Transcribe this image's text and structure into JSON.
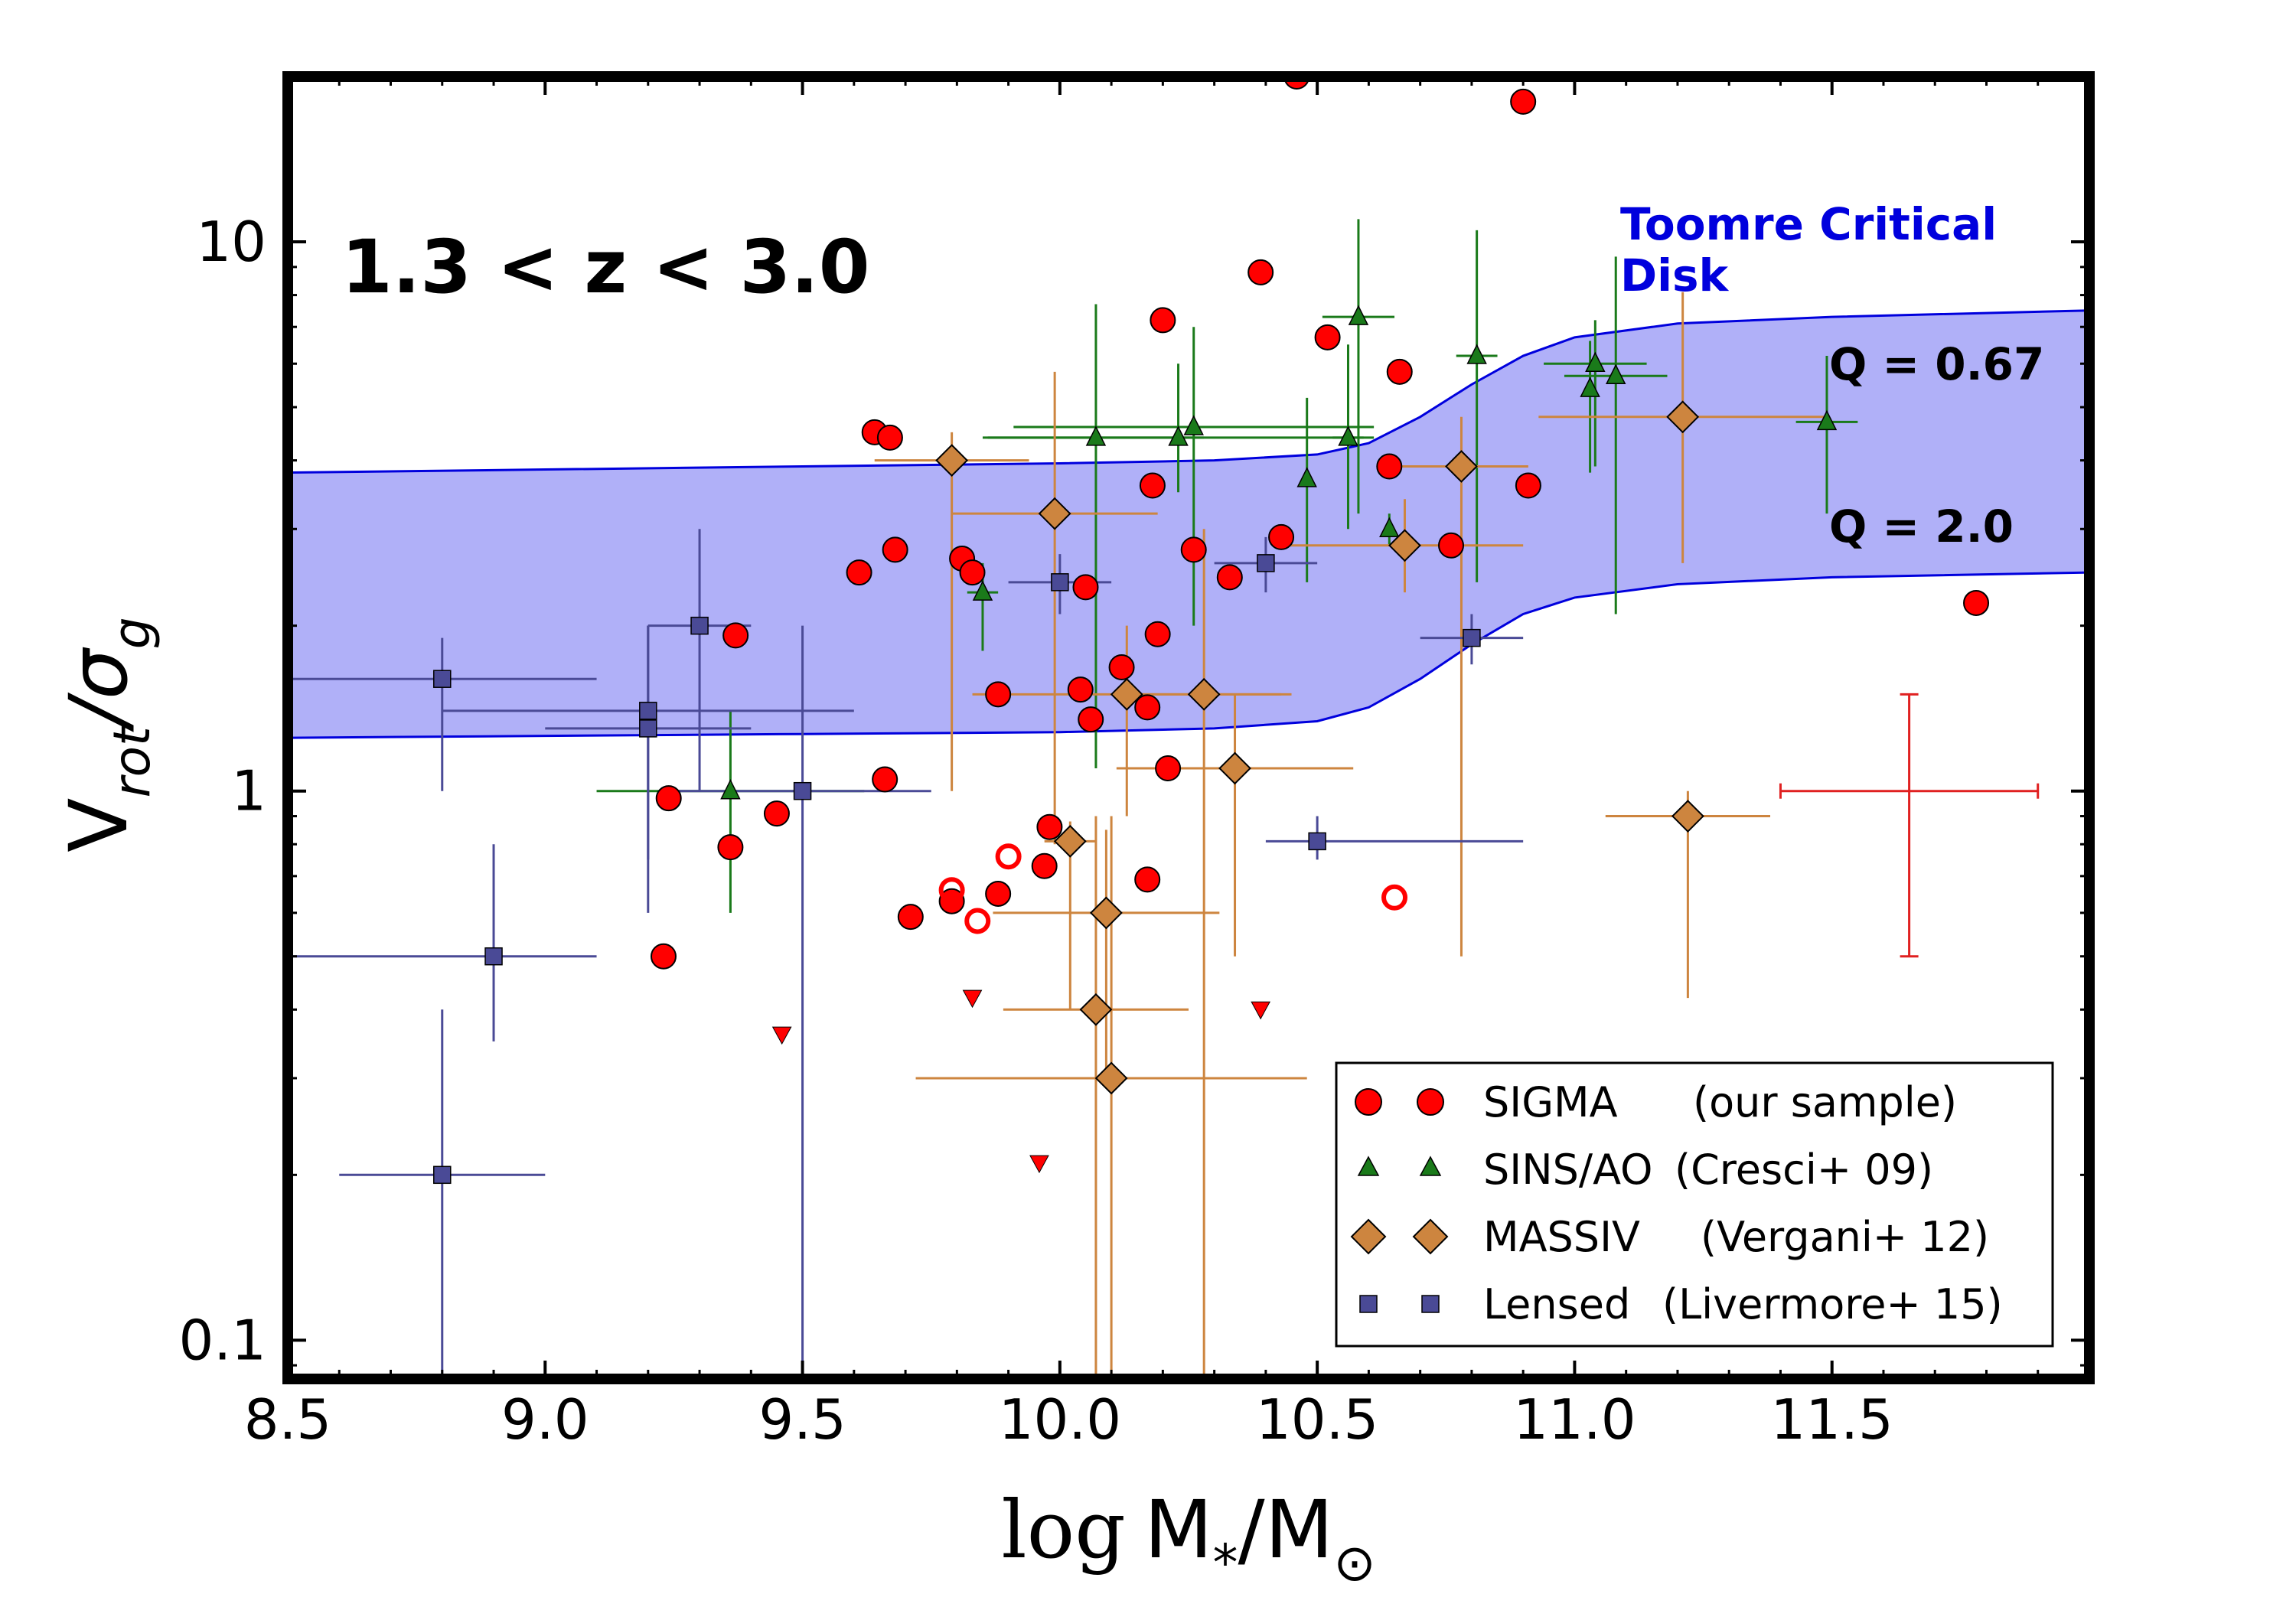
{
  "chart_data": {
    "type": "scatter",
    "title": "1.3 < z < 3.0",
    "xlabel": {
      "prefix": "log",
      "main": "M",
      "sub": "*",
      "rest": "/M",
      "sun": "⊙"
    },
    "ylabel": {
      "main": "V",
      "sub1": "rot",
      "slash": "/σ",
      "sub2": "g"
    },
    "x_scale": "linear",
    "y_scale": "log",
    "xlim": [
      8.5,
      12.0
    ],
    "ylim": [
      0.085,
      20
    ],
    "x_ticks": [
      8.5,
      9.0,
      9.5,
      10.0,
      10.5,
      11.0,
      11.5
    ],
    "x_tick_labels": [
      "8.5",
      "9.0",
      "9.5",
      "10.0",
      "10.5",
      "11.0",
      "11.5"
    ],
    "y_ticks": [
      0.1,
      1,
      10
    ],
    "y_tick_labels": [
      "0.1",
      "1",
      "10"
    ],
    "band": {
      "label_line1": "Toomre Critical",
      "label_line2": "Disk",
      "upper_label": "Q = 0.67",
      "lower_label": "Q = 2.0",
      "color": "#0000dd",
      "fill": "#b0b0f8",
      "x": [
        8.5,
        9.0,
        9.5,
        10.0,
        10.3,
        10.5,
        10.6,
        10.7,
        10.8,
        10.9,
        11.0,
        11.2,
        11.5,
        12.0
      ],
      "upper": [
        3.8,
        3.85,
        3.9,
        3.95,
        4.0,
        4.1,
        4.3,
        4.8,
        5.5,
        6.2,
        6.7,
        7.1,
        7.3,
        7.5
      ],
      "lower": [
        1.25,
        1.26,
        1.27,
        1.28,
        1.3,
        1.34,
        1.42,
        1.6,
        1.85,
        2.1,
        2.25,
        2.38,
        2.45,
        2.5
      ]
    },
    "typical_error": {
      "x": 11.65,
      "y": 1.0,
      "xerr": 0.25,
      "y_low": 0.5,
      "y_high": 1.5,
      "color": "#e02020"
    },
    "series": [
      {
        "name": "SIGMA",
        "ref": "(our sample)",
        "marker": "circle",
        "color": "#ff0000",
        "points": [
          [
            9.23,
            0.5
          ],
          [
            9.24,
            0.97
          ],
          [
            9.36,
            0.79
          ],
          [
            9.37,
            1.92
          ],
          [
            9.45,
            0.91
          ],
          [
            9.61,
            2.5
          ],
          [
            9.64,
            4.5
          ],
          [
            9.66,
            1.05
          ],
          [
            9.67,
            4.4
          ],
          [
            9.68,
            2.75
          ],
          [
            9.71,
            0.59
          ],
          [
            9.79,
            0.63
          ],
          [
            9.81,
            2.65
          ],
          [
            9.83,
            2.5
          ],
          [
            9.88,
            0.65
          ],
          [
            9.88,
            1.5
          ],
          [
            9.97,
            0.73
          ],
          [
            9.98,
            0.86
          ],
          [
            10.04,
            1.53
          ],
          [
            10.05,
            2.35
          ],
          [
            10.06,
            1.35
          ],
          [
            10.12,
            1.68
          ],
          [
            10.17,
            1.42
          ],
          [
            10.17,
            0.69
          ],
          [
            10.18,
            3.6
          ],
          [
            10.19,
            1.93
          ],
          [
            10.2,
            7.2
          ],
          [
            10.21,
            1.1
          ],
          [
            10.26,
            2.75
          ],
          [
            10.33,
            2.45
          ],
          [
            10.39,
            8.8
          ],
          [
            10.43,
            2.9
          ],
          [
            10.46,
            20.0
          ],
          [
            10.52,
            6.7
          ],
          [
            10.64,
            3.9
          ],
          [
            10.66,
            5.8
          ],
          [
            10.76,
            2.8
          ],
          [
            10.9,
            18.0
          ],
          [
            10.91,
            3.6
          ],
          [
            11.78,
            2.2
          ]
        ]
      },
      {
        "name": "SIGMA (open)",
        "marker": "open-circle",
        "color": "#ff0000",
        "points": [
          [
            9.79,
            0.66
          ],
          [
            9.84,
            0.58
          ],
          [
            9.9,
            0.76
          ],
          [
            10.65,
            0.64
          ]
        ]
      },
      {
        "name": "SIGMA (upper limits)",
        "marker": "down-triangle",
        "color": "#ff0000",
        "points": [
          [
            9.46,
            0.36
          ],
          [
            9.83,
            0.42
          ],
          [
            9.96,
            0.21
          ],
          [
            10.39,
            0.4
          ]
        ]
      },
      {
        "name": "SINS/AO",
        "ref": "(Cresci+ 09)",
        "marker": "triangle",
        "color": "#1a7a1a",
        "points": [
          {
            "x": 9.36,
            "y": 1.0,
            "xerr": [
              0.26,
              0.26
            ],
            "ylo": 0.6,
            "yhi": 1.4
          },
          {
            "x": 9.85,
            "y": 2.3,
            "xerr": [
              0.03,
              0.03
            ],
            "ylo": 1.8,
            "yhi": 2.6
          },
          {
            "x": 10.07,
            "y": 4.4,
            "xerr": [
              0.21,
              0.21
            ],
            "ylo": 1.1,
            "yhi": 7.7
          },
          {
            "x": 10.23,
            "y": 4.4,
            "xerr": [
              0.38,
              0.38
            ],
            "ylo": 3.5,
            "yhi": 6.0
          },
          {
            "x": 10.26,
            "y": 4.6,
            "xerr": [
              0.35,
              0.35
            ],
            "ylo": 2.0,
            "yhi": 7.0
          },
          {
            "x": 10.48,
            "y": 3.7,
            "xerr": [
              0.0,
              0.0
            ],
            "ylo": 2.4,
            "yhi": 5.2
          },
          {
            "x": 10.56,
            "y": 4.4,
            "xerr": [
              0.03,
              0.03
            ],
            "ylo": 3.0,
            "yhi": 6.5
          },
          {
            "x": 10.58,
            "y": 7.3,
            "xerr": [
              0.07,
              0.07
            ],
            "ylo": 3.2,
            "yhi": 11.0
          },
          {
            "x": 10.64,
            "y": 3.0,
            "xerr": [
              0.0,
              0.0
            ],
            "ylo": 2.8,
            "yhi": 3.2
          },
          {
            "x": 10.81,
            "y": 6.2,
            "xerr": [
              0.04,
              0.04
            ],
            "ylo": 2.4,
            "yhi": 10.5
          },
          {
            "x": 11.03,
            "y": 5.4,
            "xerr": [
              0.0,
              0.0
            ],
            "ylo": 3.8,
            "yhi": 6.6
          },
          {
            "x": 11.04,
            "y": 6.0,
            "xerr": [
              0.1,
              0.1
            ],
            "ylo": 3.9,
            "yhi": 7.2
          },
          {
            "x": 11.08,
            "y": 5.7,
            "xerr": [
              0.1,
              0.1
            ],
            "ylo": 2.1,
            "yhi": 9.4
          },
          {
            "x": 11.49,
            "y": 4.7,
            "xerr": [
              0.06,
              0.06
            ],
            "ylo": 3.2,
            "yhi": 6.2
          }
        ]
      },
      {
        "name": "MASSIV",
        "ref": "(Vergani+ 12)",
        "marker": "diamond",
        "color": "#cd853f",
        "points": [
          {
            "x": 9.79,
            "y": 4.0,
            "xerr": [
              0.15,
              0.15
            ],
            "ylo": 1.0,
            "yhi": 4.5
          },
          {
            "x": 9.99,
            "y": 3.2,
            "xerr": [
              0.2,
              0.2
            ],
            "ylo": 0.8,
            "yhi": 5.8
          },
          {
            "x": 10.02,
            "y": 0.81,
            "xerr": [
              0.05,
              0.05
            ],
            "ylo": 0.4,
            "yhi": 0.88
          },
          {
            "x": 10.07,
            "y": 0.4,
            "xerr": [
              0.18,
              0.18
            ],
            "ylo": 0.085,
            "yhi": 0.9
          },
          {
            "x": 10.09,
            "y": 0.6,
            "xerr": [
              0.22,
              0.22
            ],
            "ylo": 0.3,
            "yhi": 0.85
          },
          {
            "x": 10.1,
            "y": 0.3,
            "xerr": [
              0.38,
              0.38
            ],
            "ylo": 0.085,
            "yhi": 0.9
          },
          {
            "x": 10.13,
            "y": 1.5,
            "xerr": [
              0.3,
              0.3
            ],
            "ylo": 0.9,
            "yhi": 2.0
          },
          {
            "x": 10.28,
            "y": 1.5,
            "xerr": [
              0.17,
              0.17
            ],
            "ylo": 0.085,
            "yhi": 3.0
          },
          {
            "x": 10.34,
            "y": 1.1,
            "xerr": [
              0.23,
              0.23
            ],
            "ylo": 0.5,
            "yhi": 1.5
          },
          {
            "x": 10.67,
            "y": 2.8,
            "xerr": [
              0.23,
              0.23
            ],
            "ylo": 2.3,
            "yhi": 3.4
          },
          {
            "x": 10.78,
            "y": 3.9,
            "xerr": [
              0.13,
              0.13
            ],
            "ylo": 0.5,
            "yhi": 4.8
          },
          {
            "x": 11.21,
            "y": 4.8,
            "xerr": [
              0.28,
              0.28
            ],
            "ylo": 2.6,
            "yhi": 8.1
          },
          {
            "x": 11.22,
            "y": 0.9,
            "xerr": [
              0.16,
              0.16
            ],
            "ylo": 0.42,
            "yhi": 1.0
          }
        ]
      },
      {
        "name": "Lensed",
        "ref": "(Livermore+ 15)",
        "marker": "square",
        "color": "#4a4a96",
        "points": [
          {
            "x": 8.8,
            "y": 1.6,
            "xerr": [
              0.3,
              0.3
            ],
            "ylo": 1.0,
            "yhi": 1.9
          },
          {
            "x": 8.8,
            "y": 0.2,
            "xerr": [
              0.2,
              0.2
            ],
            "ylo": 0.085,
            "yhi": 0.4
          },
          {
            "x": 8.9,
            "y": 0.5,
            "xerr": [
              0.4,
              0.2
            ],
            "ylo": 0.35,
            "yhi": 0.8
          },
          {
            "x": 9.2,
            "y": 1.4,
            "xerr": [
              0.4,
              0.4
            ],
            "ylo": 0.75,
            "yhi": 2.0
          },
          {
            "x": 9.2,
            "y": 1.3,
            "xerr": [
              0.2,
              0.2
            ],
            "ylo": 0.6,
            "yhi": 2.0
          },
          {
            "x": 9.3,
            "y": 2.0,
            "xerr": [
              0.1,
              0.1
            ],
            "ylo": 1.0,
            "yhi": 3.0
          },
          {
            "x": 9.5,
            "y": 1.0,
            "xerr": [
              0.25,
              0.25
            ],
            "ylo": 0.085,
            "yhi": 2.0
          },
          {
            "x": 10.0,
            "y": 2.4,
            "xerr": [
              0.1,
              0.1
            ],
            "ylo": 2.1,
            "yhi": 2.7
          },
          {
            "x": 10.4,
            "y": 2.6,
            "xerr": [
              0.1,
              0.1
            ],
            "ylo": 2.3,
            "yhi": 2.9
          },
          {
            "x": 10.5,
            "y": 0.81,
            "xerr": [
              0.1,
              0.4
            ],
            "ylo": 0.75,
            "yhi": 0.9
          },
          {
            "x": 10.8,
            "y": 1.9,
            "xerr": [
              0.1,
              0.1
            ],
            "ylo": 1.7,
            "yhi": 2.1
          }
        ]
      }
    ],
    "legend": {
      "position": "lower-right",
      "entries": [
        {
          "name": "SIGMA",
          "ref": "(our sample)",
          "marker": "circle",
          "color": "#ff0000"
        },
        {
          "name": "SINS/AO",
          "ref": "(Cresci+ 09)",
          "marker": "triangle",
          "color": "#1a7a1a"
        },
        {
          "name": "MASSIV",
          "ref": "(Vergani+ 12)",
          "marker": "diamond",
          "color": "#cd853f"
        },
        {
          "name": "Lensed",
          "ref": "(Livermore+ 15)",
          "marker": "square",
          "color": "#4a4a96"
        }
      ]
    }
  }
}
